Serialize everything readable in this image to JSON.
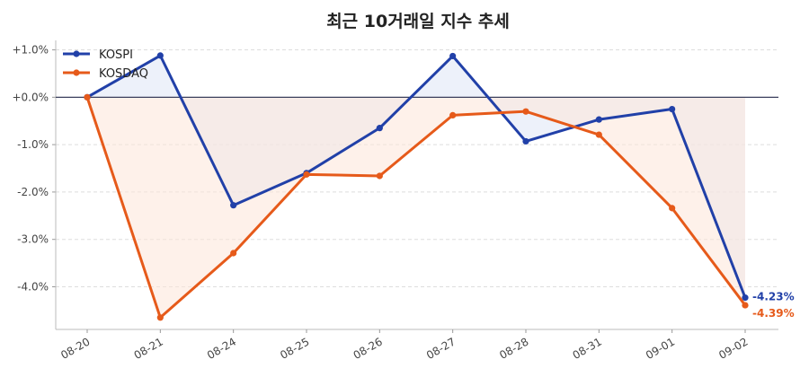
{
  "chart_data": {
    "type": "line",
    "title": "최근 10거래일 지수 추세",
    "xlabel": "",
    "ylabel": "",
    "categories": [
      "08-20",
      "08-21",
      "08-24",
      "08-25",
      "08-26",
      "08-27",
      "08-28",
      "08-31",
      "09-01",
      "09-02"
    ],
    "ylim": [
      -4.9,
      1.2
    ],
    "yticks": [
      1.0,
      0.0,
      -1.0,
      -2.0,
      -3.0,
      -4.0
    ],
    "ytick_labels": [
      "+1.0%",
      "+0.0%",
      "-1.0%",
      "-2.0%",
      "-3.0%",
      "-4.0%"
    ],
    "grid": true,
    "legend_position": "top-left",
    "series": [
      {
        "name": "KOSPI",
        "color": "#2140a8",
        "fill_color": "#dfe6f5",
        "values": [
          0.0,
          0.88,
          -2.28,
          -1.6,
          -0.65,
          0.87,
          -0.93,
          -0.47,
          -0.25,
          -4.23
        ],
        "end_label": "-4.23%"
      },
      {
        "name": "KOSDAQ",
        "color": "#e65a1a",
        "fill_color": "#fde6d8",
        "values": [
          0.0,
          -4.65,
          -3.29,
          -1.63,
          -1.66,
          -0.38,
          -0.3,
          -0.79,
          -2.34,
          -4.39
        ],
        "end_label": "-4.39%"
      }
    ]
  }
}
